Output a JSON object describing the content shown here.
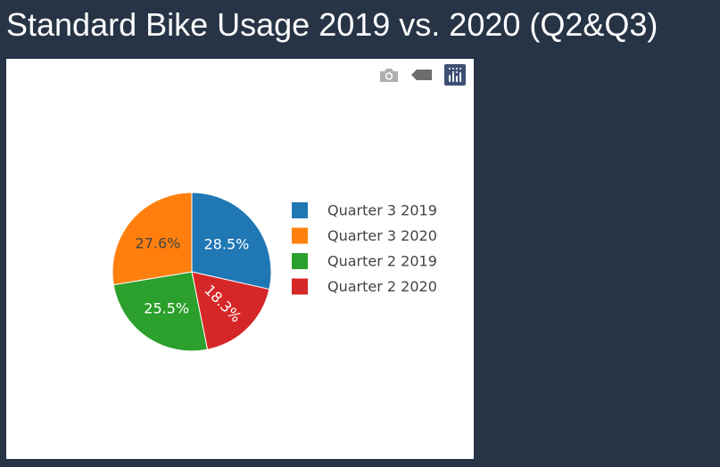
{
  "header": {
    "title": "Standard Bike Usage 2019 vs. 2020 (Q2&Q3)"
  },
  "modebar": {
    "buttons": [
      {
        "name": "camera-icon",
        "tooltip": "Download plot as a png"
      },
      {
        "name": "hover-compare-icon",
        "tooltip": "Show closest data on hover"
      },
      {
        "name": "plotly-logo-icon",
        "tooltip": "Produced with Plotly"
      }
    ]
  },
  "colors": {
    "background": "#273446",
    "card": "#ffffff",
    "modebar_icon": "#b0b0b0",
    "modebar_active": "#6d6d6d",
    "plotly_logo": "#3f4f75"
  },
  "chart_data": {
    "type": "pie",
    "labels": [
      "Quarter 3 2019",
      "Quarter 3 2020",
      "Quarter 2 2019",
      "Quarter 2 2020"
    ],
    "values": [
      28.5,
      27.6,
      25.5,
      18.3
    ],
    "percent_labels": [
      "28.5%",
      "27.6%",
      "25.5%",
      "18.3%"
    ],
    "colors": [
      "#1f77b4",
      "#ff7f0e",
      "#2ca02c",
      "#d62728"
    ],
    "slice_order": [
      0,
      3,
      2,
      1
    ],
    "direction": "clockwise",
    "start": "top",
    "legend_position": "right"
  }
}
